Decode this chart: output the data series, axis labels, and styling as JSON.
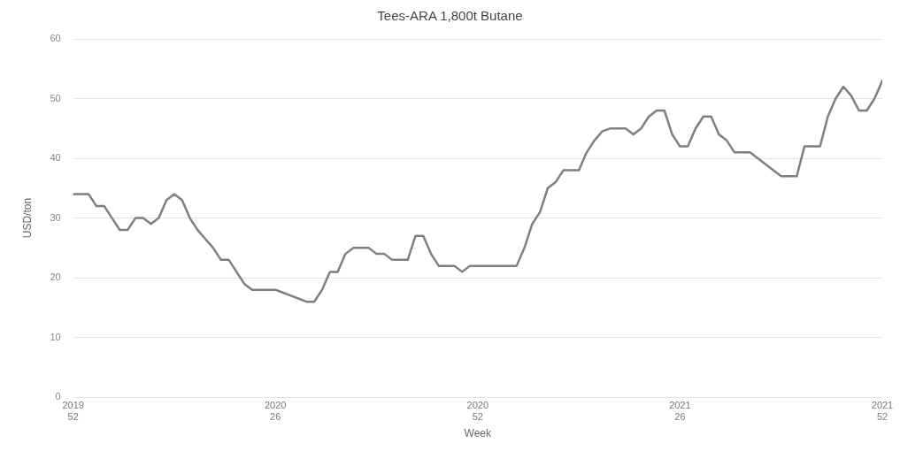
{
  "chart_data": {
    "type": "line",
    "title": "Tees-ARA 1,800t Butane",
    "xlabel": "Week",
    "ylabel": "USD/ton",
    "categories": [
      "2019\n52",
      null,
      null,
      null,
      null,
      null,
      null,
      null,
      null,
      null,
      null,
      null,
      null,
      null,
      null,
      null,
      null,
      null,
      null,
      null,
      null,
      null,
      null,
      null,
      null,
      null,
      "2020\n26",
      null,
      null,
      null,
      null,
      null,
      null,
      null,
      null,
      null,
      null,
      null,
      null,
      null,
      null,
      null,
      null,
      null,
      null,
      null,
      null,
      null,
      null,
      null,
      null,
      null,
      "2020\n52",
      null,
      null,
      null,
      null,
      null,
      null,
      null,
      null,
      null,
      null,
      null,
      null,
      null,
      null,
      null,
      null,
      null,
      null,
      null,
      null,
      null,
      null,
      null,
      null,
      null,
      "2021\n26",
      null,
      null,
      null,
      null,
      null,
      null,
      null,
      null,
      null,
      null,
      null,
      null,
      null,
      null,
      null,
      null,
      null,
      null,
      null,
      null,
      null,
      null,
      null,
      null,
      null,
      "2021\n52"
    ],
    "ylim": [
      0,
      60
    ],
    "yticks": [
      0,
      10,
      20,
      30,
      40,
      50,
      60
    ],
    "grid": "y",
    "marker": "none",
    "line_style": "solid",
    "series": [
      {
        "color": "#7f7f7f",
        "values": [
          34,
          34,
          34,
          32,
          32,
          30,
          28,
          28,
          30,
          30,
          29,
          30,
          33,
          34,
          33,
          30,
          28,
          26.5,
          25,
          23,
          23,
          21,
          19,
          18,
          18,
          18,
          18,
          17.5,
          17,
          16.5,
          16,
          16,
          18,
          21,
          21,
          24,
          25,
          25,
          25,
          24,
          24,
          23,
          23,
          23,
          27,
          27,
          24,
          22,
          22,
          22,
          21,
          22,
          22,
          22,
          22,
          22,
          22,
          22,
          25,
          29,
          31,
          35,
          36,
          38,
          38,
          38,
          41,
          43,
          44.5,
          45,
          45,
          45,
          44,
          45,
          47,
          48,
          48,
          44,
          42,
          42,
          45,
          47,
          47,
          44,
          43,
          41,
          41,
          41,
          40,
          39,
          38,
          37,
          37,
          37,
          42,
          42,
          42,
          47,
          50,
          52,
          50.5,
          48,
          48,
          50,
          53
        ]
      }
    ]
  }
}
